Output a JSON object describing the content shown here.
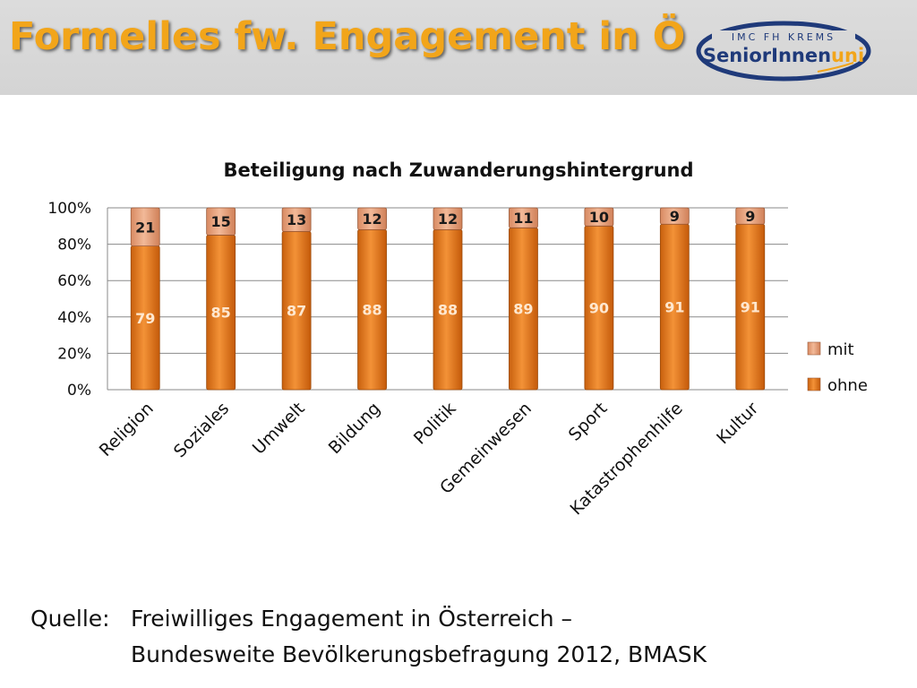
{
  "slide": {
    "title": "Formelles fw. Engagement in Ö"
  },
  "logo": {
    "top_text": "IMC FH KREMS",
    "main_text": "SeniorInnen",
    "accent_text": "uni",
    "colors": {
      "navy": "#1f3a7a",
      "gold": "#f2a51a"
    }
  },
  "chart_data": {
    "type": "bar",
    "stacked": true,
    "percent_stacked": true,
    "title": "Beteiligung nach Zuwanderungshintergrund",
    "categories": [
      "Religion",
      "Soziales",
      "Umwelt",
      "Bildung",
      "Politik",
      "Gemeinwesen",
      "Sport",
      "Katastrophenhilfe",
      "Kultur"
    ],
    "series": [
      {
        "name": "ohne",
        "values": [
          79,
          85,
          87,
          88,
          88,
          89,
          90,
          91,
          91
        ],
        "color": "#e8791a"
      },
      {
        "name": "mit",
        "values": [
          21,
          15,
          13,
          12,
          12,
          11,
          10,
          9,
          9
        ],
        "color": "#e6a07a"
      }
    ],
    "y_ticks": [
      "0%",
      "20%",
      "40%",
      "60%",
      "80%",
      "100%"
    ],
    "ylim": [
      0,
      100
    ],
    "grid": true,
    "legend_position": "right",
    "legend": [
      "mit",
      "ohne"
    ]
  },
  "source": {
    "label": "Quelle:",
    "line1": "Freiwilliges Engagement in Österreich –",
    "line2": "Bundesweite Bevölkerungsbefragung 2012, BMASK"
  }
}
